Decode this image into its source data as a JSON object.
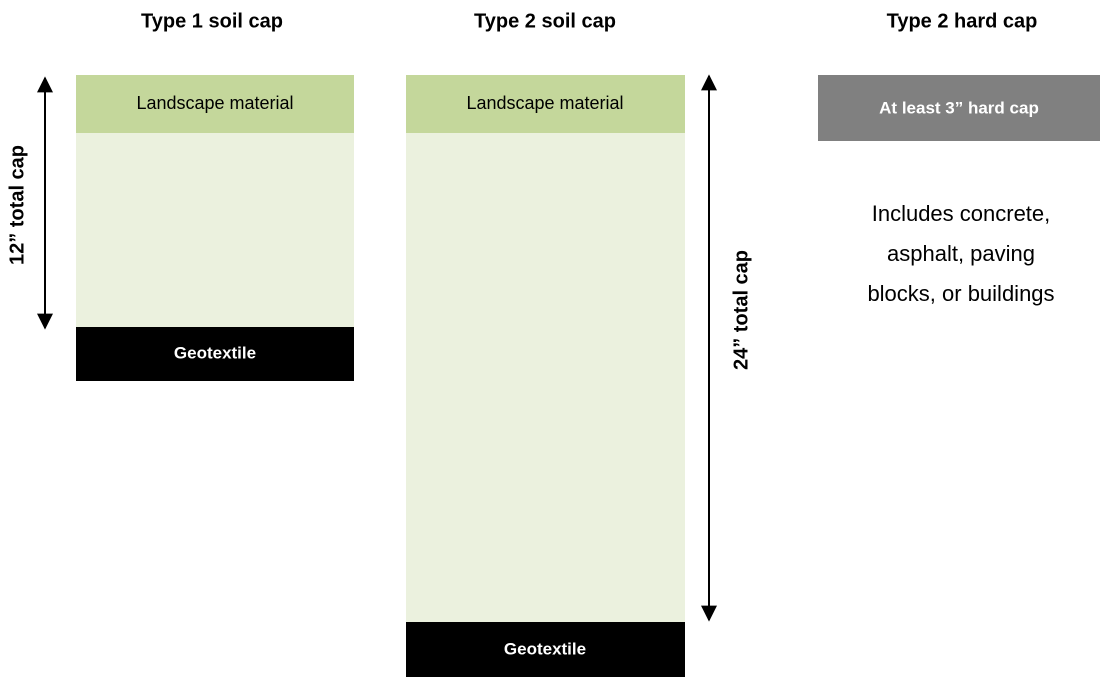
{
  "columns": [
    {
      "title": "Type 1 soil cap",
      "top_layer": "Landscape material",
      "bottom_layer": "Geotextile",
      "dimension": "12” total cap"
    },
    {
      "title": "Type 2 soil cap",
      "top_layer": "Landscape material",
      "bottom_layer": "Geotextile",
      "dimension": "24” total cap"
    },
    {
      "title": "Type 2 hard cap",
      "top_layer": "At least 3” hard cap",
      "note_lines": [
        "Includes concrete,",
        "asphalt, paving",
        "blocks, or buildings"
      ]
    }
  ]
}
